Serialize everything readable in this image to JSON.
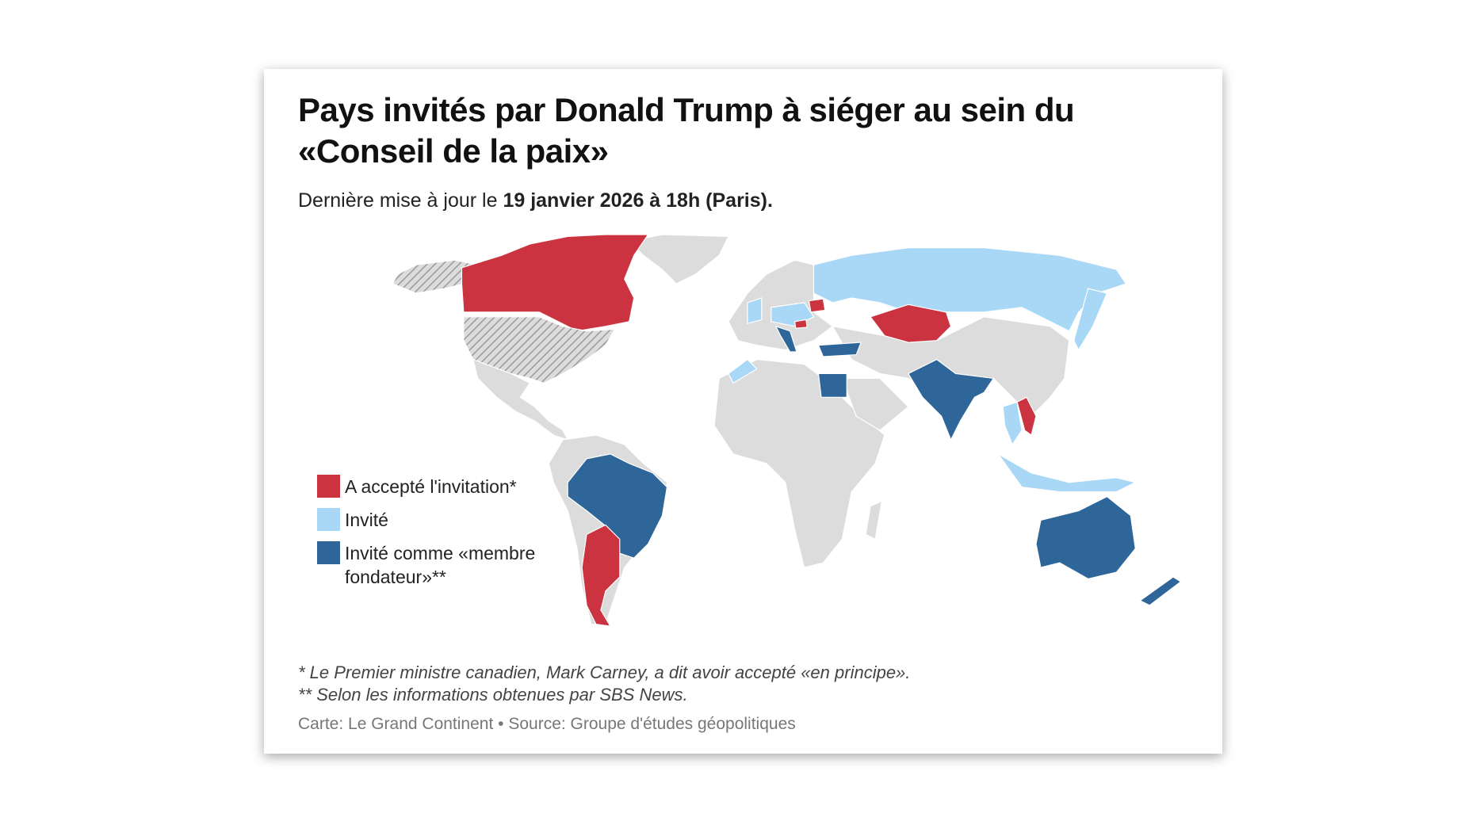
{
  "header": {
    "title": "Pays invités par Donald Trump à siéger au sein du «Conseil de la paix»",
    "subtitle_prefix": "Dernière mise à jour le ",
    "subtitle_date": "19 janvier 2026 à 18h (Paris)."
  },
  "legend": [
    {
      "label": "A accepté l'invitation*",
      "color": "#cc3340"
    },
    {
      "label": "Invité",
      "color": "#a9d8f7"
    },
    {
      "label": "Invité comme «membre fondateur»**",
      "color": "#2e6699"
    }
  ],
  "map_colors": {
    "land": "#dcdcdc",
    "border": "#ffffff",
    "hatched": "#9a9a9a"
  },
  "notes": [
    "* Le Premier ministre canadien, Mark Carney, a dit avoir accepté «en principe».",
    "** Selon les informations obtenues par SBS News."
  ],
  "credit": "Carte: Le Grand Continent • Source: Groupe d'études géopolitiques"
}
